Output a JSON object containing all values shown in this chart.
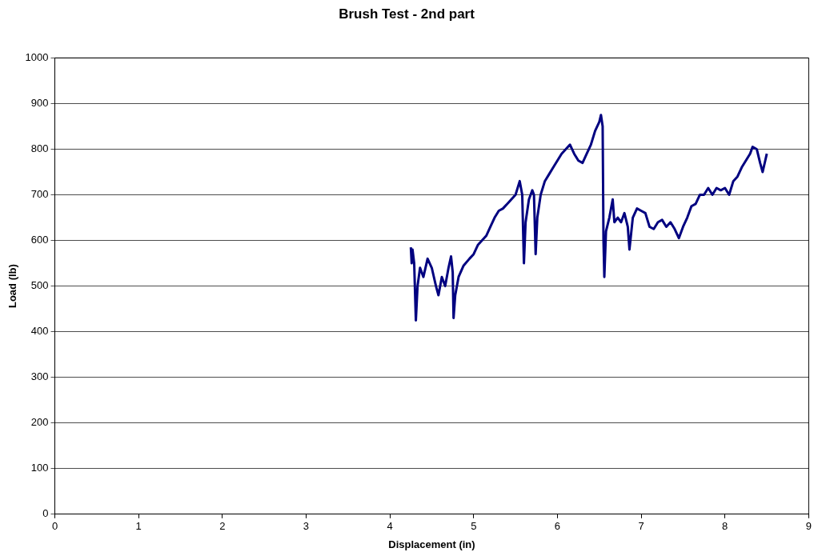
{
  "chart_data": {
    "type": "line",
    "title": "Brush Test - 2nd part",
    "xlabel": "Displacement (in)",
    "ylabel": "Load (lb)",
    "xlim": [
      0,
      9
    ],
    "xticks": [
      0,
      1,
      2,
      3,
      4,
      5,
      6,
      7,
      8,
      9
    ],
    "ylim": [
      0,
      1000
    ],
    "yticks": [
      0,
      100,
      200,
      300,
      400,
      500,
      600,
      700,
      800,
      900,
      1000
    ],
    "grid": "y",
    "legend": false,
    "marker": "none",
    "line_style": "solid",
    "series": [
      {
        "color": "#000080",
        "x": [
          4.25,
          4.26,
          4.27,
          4.29,
          4.31,
          4.33,
          4.36,
          4.4,
          4.45,
          4.5,
          4.55,
          4.58,
          4.62,
          4.66,
          4.7,
          4.73,
          4.75,
          4.76,
          4.78,
          4.82,
          4.88,
          4.95,
          5.0,
          5.05,
          5.1,
          5.15,
          5.2,
          5.25,
          5.3,
          5.35,
          5.4,
          5.45,
          5.5,
          5.55,
          5.58,
          5.6,
          5.62,
          5.66,
          5.7,
          5.72,
          5.74,
          5.76,
          5.8,
          5.85,
          5.9,
          5.95,
          6.0,
          6.05,
          6.1,
          6.15,
          6.2,
          6.25,
          6.3,
          6.35,
          6.4,
          6.45,
          6.5,
          6.52,
          6.54,
          6.55,
          6.56,
          6.58,
          6.62,
          6.66,
          6.68,
          6.72,
          6.76,
          6.8,
          6.84,
          6.86,
          6.9,
          6.95,
          7.0,
          7.05,
          7.1,
          7.15,
          7.2,
          7.25,
          7.3,
          7.35,
          7.4,
          7.45,
          7.5,
          7.55,
          7.6,
          7.65,
          7.7,
          7.75,
          7.8,
          7.85,
          7.9,
          7.95,
          8.0,
          8.05,
          8.1,
          8.15,
          8.2,
          8.25,
          8.3,
          8.33,
          8.38,
          8.42,
          8.45,
          8.5
        ],
        "values": [
          585,
          550,
          580,
          550,
          425,
          500,
          540,
          520,
          560,
          540,
          500,
          480,
          520,
          500,
          540,
          565,
          530,
          430,
          480,
          520,
          545,
          560,
          570,
          590,
          600,
          610,
          630,
          650,
          665,
          670,
          680,
          690,
          700,
          730,
          700,
          550,
          640,
          690,
          710,
          700,
          570,
          650,
          700,
          730,
          745,
          760,
          775,
          790,
          800,
          810,
          790,
          775,
          770,
          790,
          810,
          840,
          860,
          875,
          850,
          600,
          520,
          620,
          650,
          690,
          640,
          650,
          640,
          660,
          630,
          580,
          650,
          670,
          665,
          660,
          630,
          625,
          640,
          645,
          630,
          640,
          625,
          605,
          630,
          650,
          675,
          680,
          700,
          700,
          715,
          700,
          715,
          710,
          715,
          700,
          730,
          740,
          760,
          775,
          790,
          805,
          800,
          770,
          750,
          790
        ]
      }
    ]
  }
}
